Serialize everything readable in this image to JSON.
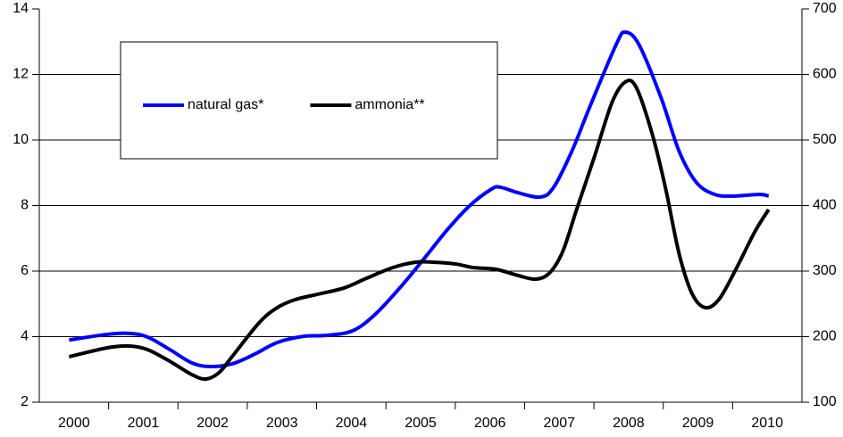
{
  "chart_data": {
    "type": "line",
    "categories": [
      "2000",
      "2001",
      "2002",
      "2003",
      "2004",
      "2005",
      "2006",
      "2007",
      "2008",
      "2009",
      "2010"
    ],
    "xlim": [
      2000,
      2011
    ],
    "ylim": [
      2,
      14
    ],
    "yticks": [
      2,
      4,
      6,
      8,
      10,
      12,
      14
    ],
    "y2lim": [
      100,
      700
    ],
    "y2ticks": [
      100,
      200,
      300,
      400,
      500,
      600,
      700
    ],
    "grid": true,
    "legend": "upper left",
    "series": [
      {
        "name": "natural gas*",
        "color": "#0000ff",
        "x": [
          2000.43,
          2000.98,
          2001.3,
          2001.56,
          2001.88,
          2002.2,
          2002.46,
          2002.78,
          2003.11,
          2003.43,
          2003.81,
          2004.14,
          2004.52,
          2004.85,
          2005.23,
          2005.55,
          2005.88,
          2006.2,
          2006.52,
          2006.65,
          2006.91,
          2007.23,
          2007.42,
          2007.68,
          2007.94,
          2008.32,
          2008.45,
          2008.65,
          2008.97,
          2009.23,
          2009.48,
          2009.74,
          2010.0,
          2010.39,
          2010.52
        ],
        "values": [
          3.9,
          4.07,
          4.1,
          3.99,
          3.61,
          3.2,
          3.09,
          3.17,
          3.47,
          3.82,
          4.01,
          4.04,
          4.18,
          4.69,
          5.56,
          6.38,
          7.25,
          7.98,
          8.5,
          8.56,
          8.39,
          8.26,
          8.56,
          9.65,
          11.01,
          12.91,
          13.29,
          12.91,
          11.28,
          9.65,
          8.7,
          8.34,
          8.29,
          8.34,
          8.29
        ]
      },
      {
        "name": "ammonia**",
        "color": "#000000",
        "axis": "y2",
        "x": [
          2000.43,
          2000.98,
          2001.3,
          2001.56,
          2001.88,
          2002.2,
          2002.4,
          2002.59,
          2002.78,
          2003.17,
          2003.43,
          2003.69,
          2004.01,
          2004.39,
          2004.72,
          2005.1,
          2005.43,
          2005.68,
          2006.01,
          2006.26,
          2006.59,
          2006.91,
          2007.16,
          2007.36,
          2007.55,
          2007.75,
          2008.01,
          2008.26,
          2008.45,
          2008.61,
          2008.84,
          2009.03,
          2009.23,
          2009.42,
          2009.61,
          2009.81,
          2010.06,
          2010.32,
          2010.52
        ],
        "values": [
          169.4,
          183.0,
          185.7,
          180.3,
          162.6,
          142.2,
          135.4,
          144.9,
          169.4,
          221.1,
          244.2,
          256.5,
          264.6,
          274.1,
          289.1,
          305.4,
          313.6,
          313.6,
          310.8,
          305.4,
          302.7,
          293.2,
          287.8,
          297.3,
          329.9,
          393.9,
          475.5,
          557.1,
          588.4,
          580.3,
          509.5,
          427.9,
          325.9,
          264.6,
          244.2,
          257.8,
          305.4,
          359.9,
          393.9
        ]
      }
    ]
  }
}
